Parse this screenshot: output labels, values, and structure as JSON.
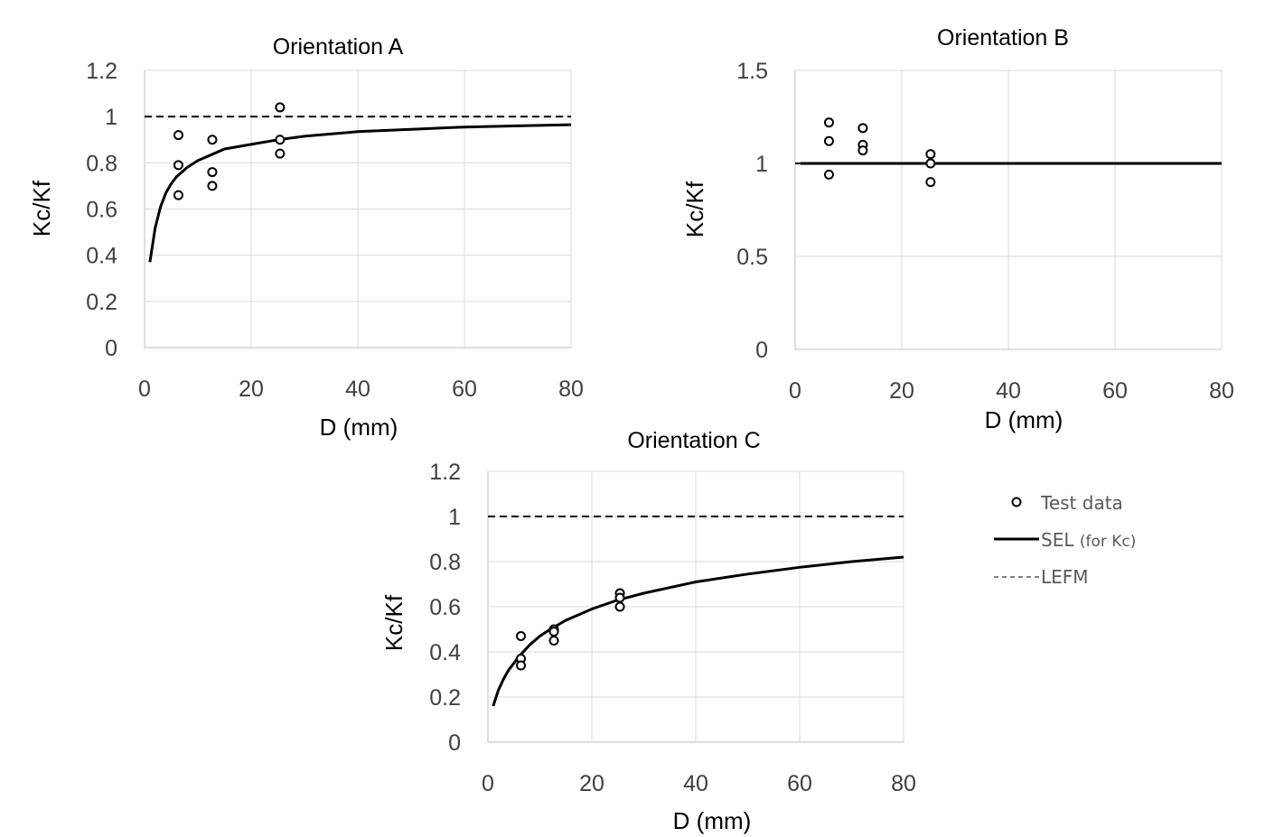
{
  "chart_data": [
    {
      "type": "scatter",
      "title": "Orientation A",
      "xlabel": "D (mm)",
      "ylabel": "Kc/Kf",
      "xlim": [
        0,
        80
      ],
      "ylim": [
        0,
        1.2
      ],
      "xticks": [
        "0",
        "20",
        "40",
        "60",
        "80"
      ],
      "yticks": [
        "0",
        "0.2",
        "0.4",
        "0.6",
        "0.8",
        "1",
        "1.2"
      ],
      "grid": true,
      "series": [
        {
          "name": "Test data",
          "kind": "points",
          "points": [
            [
              6.35,
              0.92
            ],
            [
              6.35,
              0.79
            ],
            [
              6.35,
              0.66
            ],
            [
              12.7,
              0.9
            ],
            [
              12.7,
              0.76
            ],
            [
              12.7,
              0.7
            ],
            [
              25.4,
              1.04
            ],
            [
              25.4,
              0.9
            ],
            [
              25.4,
              0.84
            ]
          ]
        },
        {
          "name": "SEL (for Kc)",
          "kind": "line",
          "points": [
            [
              1,
              0.37
            ],
            [
              2,
              0.52
            ],
            [
              3,
              0.61
            ],
            [
              4,
              0.67
            ],
            [
              5,
              0.71
            ],
            [
              6,
              0.74
            ],
            [
              8,
              0.78
            ],
            [
              10,
              0.81
            ],
            [
              12,
              0.83
            ],
            [
              15,
              0.86
            ],
            [
              20,
              0.88
            ],
            [
              25,
              0.9
            ],
            [
              30,
              0.915
            ],
            [
              40,
              0.935
            ],
            [
              50,
              0.945
            ],
            [
              60,
              0.955
            ],
            [
              70,
              0.96
            ],
            [
              80,
              0.965
            ]
          ]
        },
        {
          "name": "LEFM",
          "kind": "dashed",
          "points": [
            [
              0,
              1
            ],
            [
              80,
              1
            ]
          ]
        }
      ]
    },
    {
      "type": "scatter",
      "title": "Orientation B",
      "xlabel": "D (mm)",
      "ylabel": "Kc/Kf",
      "xlim": [
        0,
        80
      ],
      "ylim": [
        0,
        1.5
      ],
      "xticks": [
        "0",
        "20",
        "40",
        "60",
        "80"
      ],
      "yticks": [
        "0",
        "0.5",
        "1",
        "1.5"
      ],
      "grid": true,
      "series": [
        {
          "name": "Test data",
          "kind": "points",
          "points": [
            [
              6.35,
              1.22
            ],
            [
              6.35,
              1.12
            ],
            [
              6.35,
              0.94
            ],
            [
              12.7,
              1.19
            ],
            [
              12.7,
              1.1
            ],
            [
              12.7,
              1.07
            ],
            [
              25.4,
              1.05
            ],
            [
              25.4,
              1.0
            ],
            [
              25.4,
              0.9
            ]
          ]
        },
        {
          "name": "SEL (for Kc)",
          "kind": "line",
          "points": [
            [
              1,
              1.0
            ],
            [
              80,
              1.0
            ]
          ]
        },
        {
          "name": "LEFM",
          "kind": "dashed",
          "points": [
            [
              0,
              1
            ],
            [
              80,
              1
            ]
          ]
        }
      ]
    },
    {
      "type": "scatter",
      "title": "Orientation C",
      "xlabel": "D (mm)",
      "ylabel": "Kc/Kf",
      "xlim": [
        0,
        80
      ],
      "ylim": [
        0,
        1.2
      ],
      "xticks": [
        "0",
        "20",
        "40",
        "60",
        "80"
      ],
      "yticks": [
        "0",
        "0.2",
        "0.4",
        "0.6",
        "0.8",
        "1",
        "1.2"
      ],
      "grid": true,
      "series": [
        {
          "name": "Test data",
          "kind": "points",
          "points": [
            [
              6.35,
              0.47
            ],
            [
              6.35,
              0.37
            ],
            [
              6.35,
              0.34
            ],
            [
              12.7,
              0.5
            ],
            [
              12.7,
              0.49
            ],
            [
              12.7,
              0.45
            ],
            [
              25.4,
              0.66
            ],
            [
              25.4,
              0.64
            ],
            [
              25.4,
              0.6
            ]
          ]
        },
        {
          "name": "SEL (for Kc)",
          "kind": "line",
          "points": [
            [
              1,
              0.16
            ],
            [
              2,
              0.23
            ],
            [
              3,
              0.28
            ],
            [
              4,
              0.32
            ],
            [
              6,
              0.38
            ],
            [
              8,
              0.43
            ],
            [
              10,
              0.47
            ],
            [
              12,
              0.5
            ],
            [
              15,
              0.54
            ],
            [
              20,
              0.59
            ],
            [
              25,
              0.63
            ],
            [
              30,
              0.66
            ],
            [
              40,
              0.71
            ],
            [
              50,
              0.745
            ],
            [
              60,
              0.775
            ],
            [
              70,
              0.8
            ],
            [
              80,
              0.82
            ]
          ]
        },
        {
          "name": "LEFM",
          "kind": "dashed",
          "points": [
            [
              0,
              1
            ],
            [
              80,
              1
            ]
          ]
        }
      ]
    }
  ],
  "legend": {
    "placement": "right of Orientation C",
    "test_data": "Test data",
    "sel": "SEL",
    "sel_note": "(for Kc)",
    "lefm": "LEFM"
  }
}
